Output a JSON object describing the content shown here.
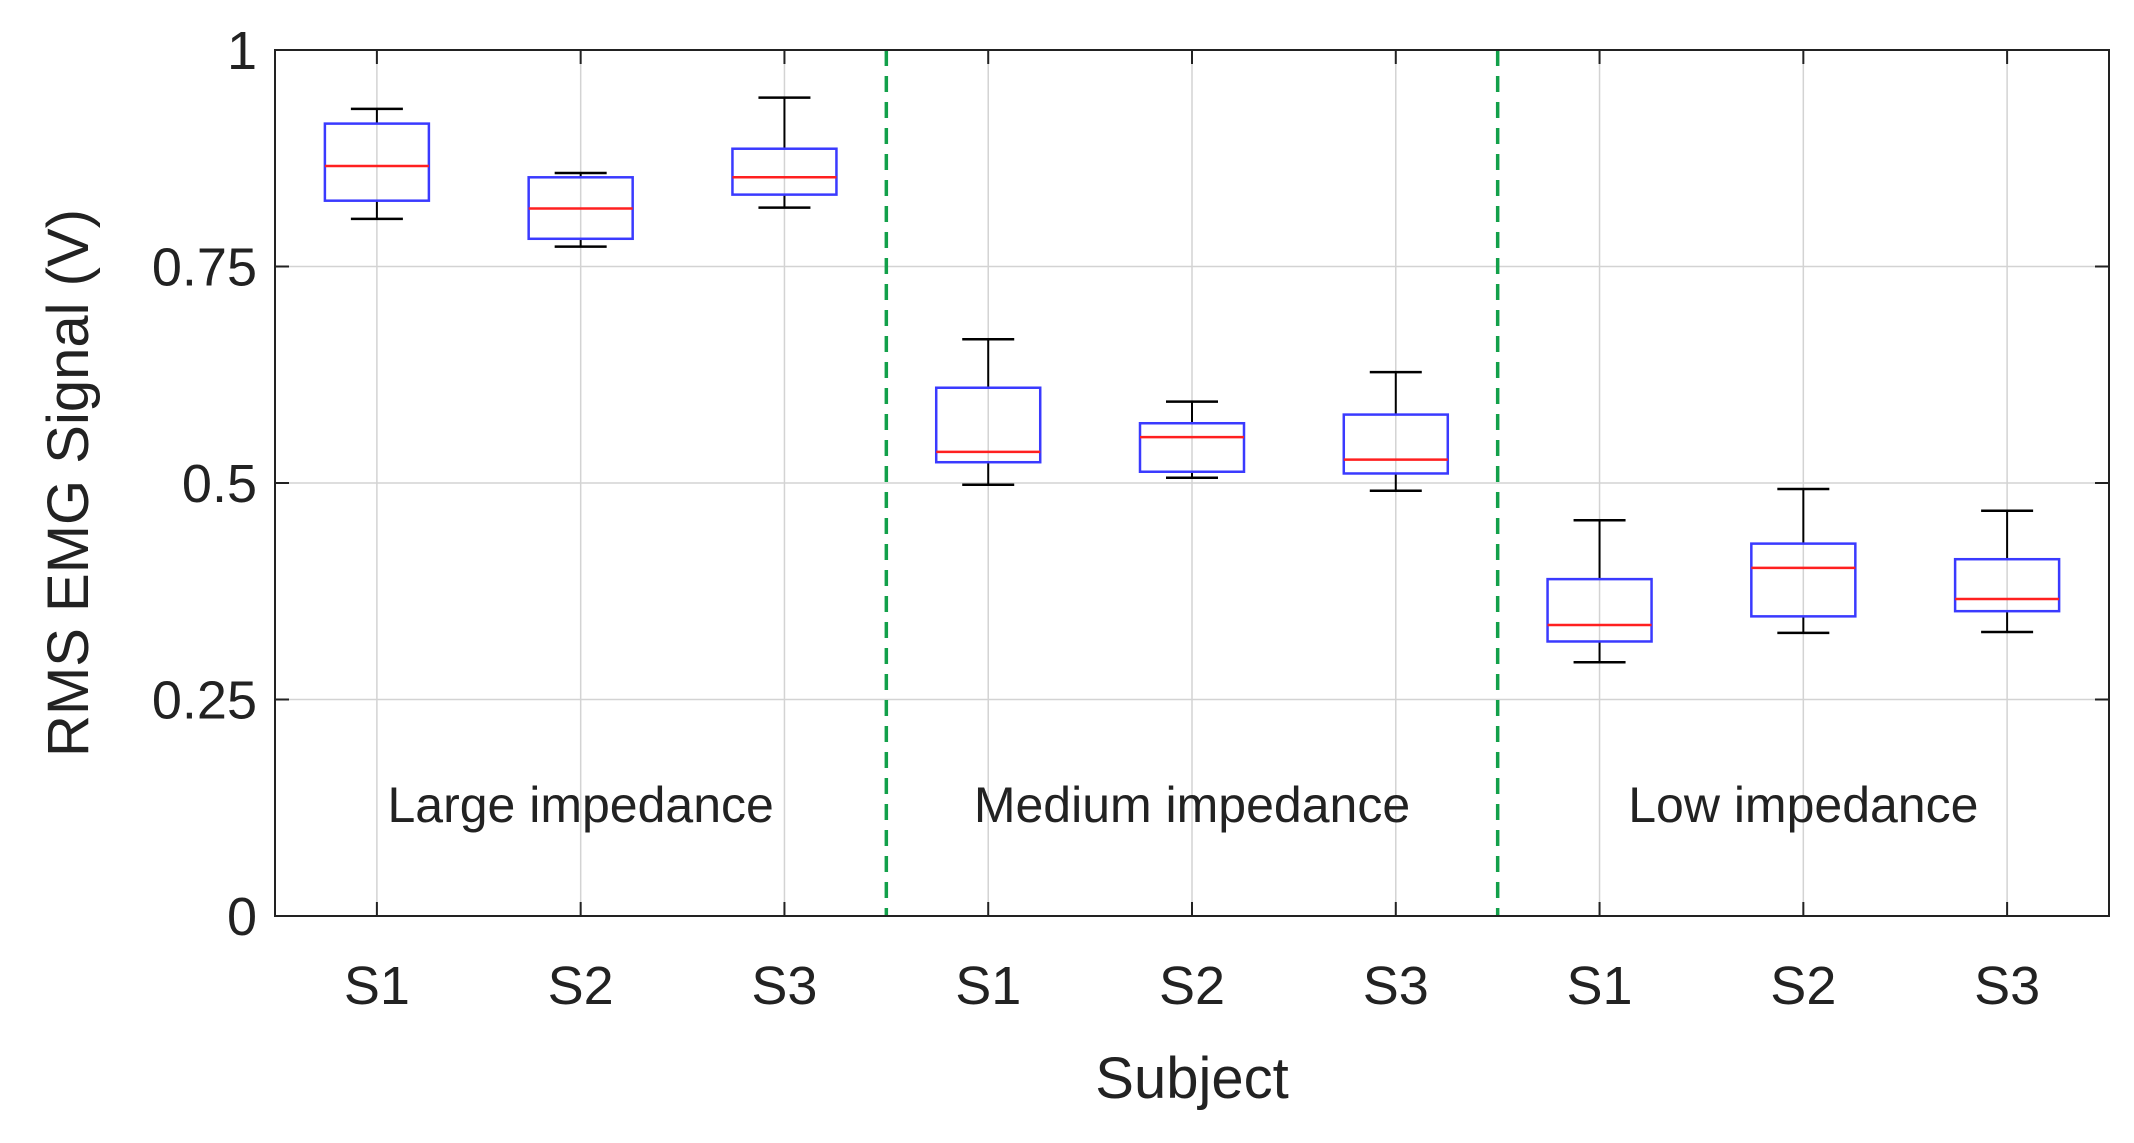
{
  "chart_data": {
    "type": "boxplot",
    "title": "",
    "xlabel": "Subject",
    "ylabel": "RMS EMG Signal (V)",
    "ylim": [
      0,
      1
    ],
    "yticks": [
      0,
      0.25,
      0.5,
      0.75,
      1
    ],
    "ytick_labels": [
      "0",
      "0.25",
      "0.5",
      "0.75",
      "1"
    ],
    "grid": true,
    "categories": [
      "S1",
      "S2",
      "S3",
      "S1",
      "S2",
      "S3",
      "S1",
      "S2",
      "S3"
    ],
    "groups": [
      {
        "label": "Large impedance",
        "start_index": 0,
        "count": 3
      },
      {
        "label": "Medium impedance",
        "start_index": 3,
        "count": 3
      },
      {
        "label": "Low impedance",
        "start_index": 6,
        "count": 3
      }
    ],
    "separators_after_index": [
      2,
      5
    ],
    "boxes": [
      {
        "min": 0.805,
        "q1": 0.826,
        "median": 0.866,
        "q3": 0.915,
        "max": 0.932
      },
      {
        "min": 0.773,
        "q1": 0.782,
        "median": 0.817,
        "q3": 0.853,
        "max": 0.858
      },
      {
        "min": 0.818,
        "q1": 0.833,
        "median": 0.853,
        "q3": 0.886,
        "max": 0.945
      },
      {
        "min": 0.498,
        "q1": 0.524,
        "median": 0.536,
        "q3": 0.61,
        "max": 0.666
      },
      {
        "min": 0.506,
        "q1": 0.513,
        "median": 0.553,
        "q3": 0.569,
        "max": 0.594
      },
      {
        "min": 0.491,
        "q1": 0.511,
        "median": 0.527,
        "q3": 0.579,
        "max": 0.628
      },
      {
        "min": 0.293,
        "q1": 0.317,
        "median": 0.336,
        "q3": 0.389,
        "max": 0.457
      },
      {
        "min": 0.327,
        "q1": 0.346,
        "median": 0.402,
        "q3": 0.43,
        "max": 0.493
      },
      {
        "min": 0.328,
        "q1": 0.352,
        "median": 0.366,
        "q3": 0.412,
        "max": 0.468
      }
    ],
    "colors": {
      "box": "#3a3aff",
      "median": "#ff2020",
      "whisker": "#000000",
      "separator": "#12a04a",
      "grid": "#d3d3d3",
      "axis": "#222222"
    }
  }
}
